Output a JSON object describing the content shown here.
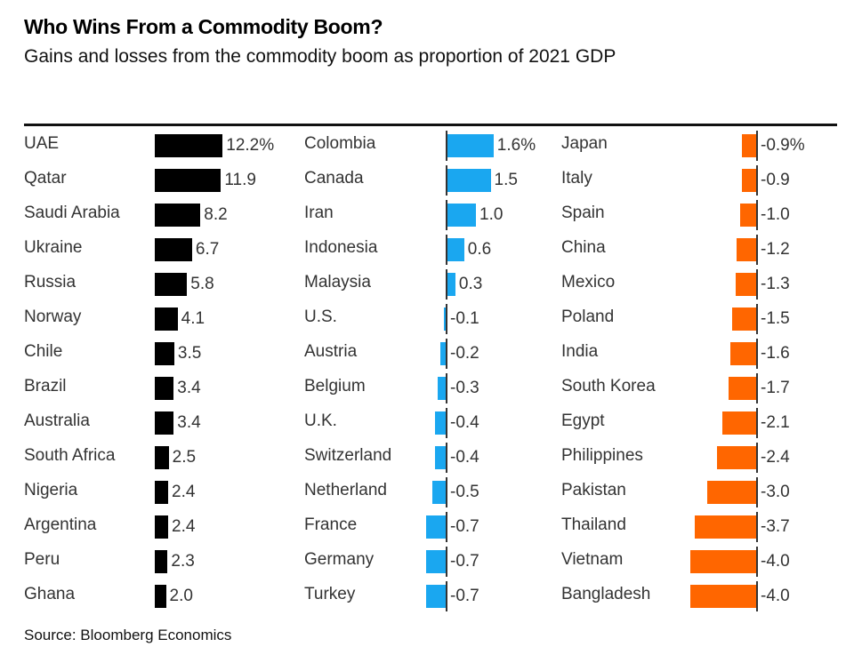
{
  "chart_data": {
    "type": "bar",
    "title": "Who Wins From a Commodity Boom?",
    "subtitle": "Gains and losses from the commodity boom as proportion of 2021 GDP",
    "xlabel": "",
    "ylabel": "",
    "unit": "% of 2021 GDP",
    "grid": false,
    "source": "Source: Bloomberg Economics",
    "panels": [
      {
        "name": "largest-gainers",
        "color": "#000000",
        "categories": [
          "UAE",
          "Qatar",
          "Saudi Arabia",
          "Ukraine",
          "Russia",
          "Norway",
          "Chile",
          "Brazil",
          "Australia",
          "South Africa",
          "Nigeria",
          "Argentina",
          "Peru",
          "Ghana"
        ],
        "values": [
          12.2,
          11.9,
          8.2,
          6.7,
          5.8,
          4.1,
          3.5,
          3.4,
          3.4,
          2.5,
          2.4,
          2.4,
          2.3,
          2.0
        ],
        "value_labels": [
          "12.2%",
          "11.9",
          "8.2",
          "6.7",
          "5.8",
          "4.1",
          "3.5",
          "3.4",
          "3.4",
          "2.5",
          "2.4",
          "2.4",
          "2.3",
          "2.0"
        ]
      },
      {
        "name": "mixed",
        "color": "#1aa7f0",
        "categories": [
          "Colombia",
          "Canada",
          "Iran",
          "Indonesia",
          "Malaysia",
          "U.S.",
          "Austria",
          "Belgium",
          "U.K.",
          "Switzerland",
          "Netherland",
          "France",
          "Germany",
          "Turkey"
        ],
        "values": [
          1.6,
          1.5,
          1.0,
          0.6,
          0.3,
          -0.1,
          -0.2,
          -0.3,
          -0.4,
          -0.4,
          -0.5,
          -0.7,
          -0.7,
          -0.7
        ],
        "value_labels": [
          "1.6%",
          "1.5",
          "1.0",
          "0.6",
          "0.3",
          "-0.1",
          "-0.2",
          "-0.3",
          "-0.4",
          "-0.4",
          "-0.5",
          "-0.7",
          "-0.7",
          "-0.7"
        ]
      },
      {
        "name": "losers",
        "color": "#ff6600",
        "categories": [
          "Japan",
          "Italy",
          "Spain",
          "China",
          "Mexico",
          "Poland",
          "India",
          "South Korea",
          "Egypt",
          "Philippines",
          "Pakistan",
          "Thailand",
          "Vietnam",
          "Bangladesh"
        ],
        "values": [
          -0.9,
          -0.9,
          -1.0,
          -1.2,
          -1.3,
          -1.5,
          -1.6,
          -1.7,
          -2.1,
          -2.4,
          -3.0,
          -3.7,
          -4.0,
          -4.0
        ],
        "value_labels": [
          "-0.9%",
          "-0.9",
          "-1.0",
          "-1.2",
          "-1.3",
          "-1.5",
          "-1.6",
          "-1.7",
          "-2.1",
          "-2.4",
          "-3.0",
          "-3.7",
          "-4.0",
          "-4.0"
        ]
      }
    ]
  }
}
